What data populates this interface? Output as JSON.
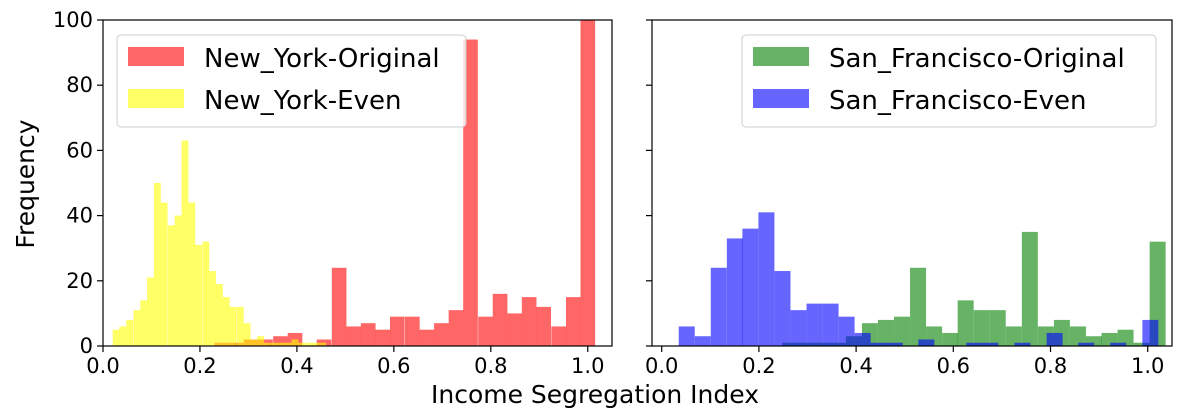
{
  "figure": {
    "ylabel": "Frequency",
    "xlabel": "Income Segregation Index"
  },
  "chart_data": [
    {
      "type": "bar",
      "panel": "left",
      "xlim": [
        0.0,
        1.05
      ],
      "ylim": [
        0,
        100
      ],
      "x_ticks": [
        "0.0",
        "0.2",
        "0.4",
        "0.6",
        "0.8",
        "1.0"
      ],
      "y_ticks": [
        "0",
        "20",
        "40",
        "60",
        "80",
        "100"
      ],
      "grid": false,
      "legend_position": "top-left",
      "series": [
        {
          "name": "New_York-Original",
          "color": "#ff0000",
          "bin_width": 0.0302,
          "bins": [
            [
              0.02,
              0
            ],
            [
              0.05,
              0
            ],
            [
              0.08,
              0
            ],
            [
              0.11,
              0
            ],
            [
              0.14,
              0
            ],
            [
              0.17,
              0
            ],
            [
              0.2,
              0
            ],
            [
              0.23,
              1
            ],
            [
              0.26,
              1
            ],
            [
              0.29,
              2
            ],
            [
              0.32,
              2
            ],
            [
              0.351,
              3
            ],
            [
              0.381,
              4
            ],
            [
              0.411,
              0
            ],
            [
              0.441,
              2
            ],
            [
              0.472,
              24
            ],
            [
              0.502,
              6
            ],
            [
              0.532,
              7
            ],
            [
              0.562,
              5
            ],
            [
              0.592,
              9
            ],
            [
              0.623,
              9
            ],
            [
              0.653,
              5
            ],
            [
              0.683,
              7
            ],
            [
              0.713,
              11
            ],
            [
              0.743,
              94
            ],
            [
              0.774,
              9
            ],
            [
              0.804,
              16
            ],
            [
              0.834,
              10
            ],
            [
              0.864,
              15
            ],
            [
              0.894,
              12
            ],
            [
              0.925,
              6
            ],
            [
              0.955,
              15
            ],
            [
              0.985,
              100
            ]
          ]
        },
        {
          "name": "New_York-Even",
          "color": "#ffff00",
          "bin_width": 0.0142,
          "bins": [
            [
              0.02,
              5
            ],
            [
              0.034,
              6
            ],
            [
              0.048,
              8
            ],
            [
              0.063,
              11
            ],
            [
              0.077,
              14
            ],
            [
              0.091,
              21
            ],
            [
              0.105,
              50
            ],
            [
              0.119,
              44
            ],
            [
              0.134,
              37
            ],
            [
              0.148,
              40
            ],
            [
              0.162,
              63
            ],
            [
              0.176,
              44
            ],
            [
              0.19,
              31
            ],
            [
              0.205,
              32
            ],
            [
              0.219,
              23
            ],
            [
              0.233,
              19
            ],
            [
              0.247,
              15
            ],
            [
              0.261,
              12
            ],
            [
              0.276,
              12
            ],
            [
              0.29,
              7
            ],
            [
              0.304,
              2
            ],
            [
              0.318,
              3
            ],
            [
              0.332,
              1
            ],
            [
              0.347,
              1
            ],
            [
              0.361,
              1
            ],
            [
              0.375,
              1
            ],
            [
              0.389,
              2
            ],
            [
              0.403,
              1
            ],
            [
              0.418,
              1
            ],
            [
              0.432,
              1
            ],
            [
              0.446,
              1
            ]
          ]
        }
      ]
    },
    {
      "type": "bar",
      "panel": "right",
      "xlim": [
        -0.02,
        1.05
      ],
      "ylim": [
        0,
        100
      ],
      "x_ticks": [
        "0.0",
        "0.2",
        "0.4",
        "0.6",
        "0.8",
        "1.0"
      ],
      "y_ticks": [
        "0",
        "20",
        "40",
        "60",
        "80",
        "100"
      ],
      "grid": false,
      "legend_position": "top-right",
      "series": [
        {
          "name": "San_Francisco-Original",
          "color": "#008000",
          "bin_width": 0.0329,
          "bins": [
            [
              0.05,
              0
            ],
            [
              0.083,
              0
            ],
            [
              0.116,
              0
            ],
            [
              0.149,
              0
            ],
            [
              0.182,
              0
            ],
            [
              0.215,
              0
            ],
            [
              0.248,
              1
            ],
            [
              0.281,
              1
            ],
            [
              0.313,
              1
            ],
            [
              0.346,
              1
            ],
            [
              0.379,
              3
            ],
            [
              0.412,
              7
            ],
            [
              0.445,
              8
            ],
            [
              0.478,
              9
            ],
            [
              0.511,
              24
            ],
            [
              0.544,
              6
            ],
            [
              0.577,
              4
            ],
            [
              0.609,
              14
            ],
            [
              0.642,
              11
            ],
            [
              0.675,
              11
            ],
            [
              0.708,
              6
            ],
            [
              0.741,
              35
            ],
            [
              0.774,
              6
            ],
            [
              0.807,
              8
            ],
            [
              0.84,
              6
            ],
            [
              0.873,
              3
            ],
            [
              0.905,
              4
            ],
            [
              0.938,
              5
            ],
            [
              0.971,
              1
            ],
            [
              1.004,
              32
            ]
          ]
        },
        {
          "name": "San_Francisco-Even",
          "color": "#0000ff",
          "bin_width": 0.0329,
          "bins": [
            [
              0.035,
              6
            ],
            [
              0.068,
              3
            ],
            [
              0.101,
              24
            ],
            [
              0.134,
              33
            ],
            [
              0.166,
              36
            ],
            [
              0.199,
              41
            ],
            [
              0.232,
              23
            ],
            [
              0.265,
              11
            ],
            [
              0.298,
              13
            ],
            [
              0.331,
              13
            ],
            [
              0.364,
              9
            ],
            [
              0.397,
              4
            ],
            [
              0.43,
              1
            ],
            [
              0.463,
              1
            ],
            [
              0.495,
              0
            ],
            [
              0.528,
              2
            ],
            [
              0.561,
              0
            ],
            [
              0.594,
              0
            ],
            [
              0.627,
              1
            ],
            [
              0.66,
              1
            ],
            [
              0.693,
              0
            ],
            [
              0.726,
              1
            ],
            [
              0.759,
              0
            ],
            [
              0.792,
              4
            ],
            [
              0.825,
              0
            ],
            [
              0.857,
              1
            ],
            [
              0.89,
              0
            ],
            [
              0.923,
              1
            ],
            [
              0.956,
              0
            ],
            [
              0.989,
              8
            ]
          ]
        }
      ]
    }
  ]
}
